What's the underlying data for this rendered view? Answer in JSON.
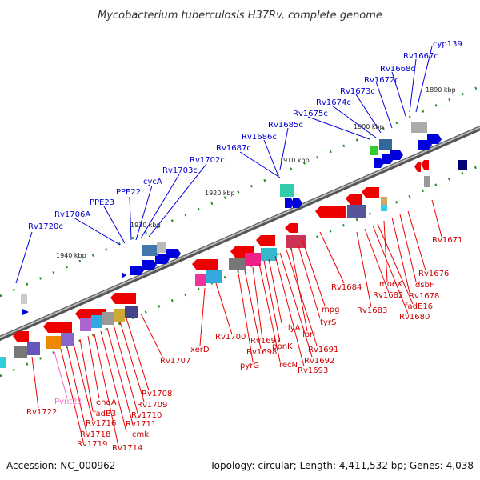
{
  "header": {
    "title": "Mycobacterium tuberculosis H37Rv, complete genome"
  },
  "footer": {
    "accession": "Accession: NC_000962",
    "summary": "Topology: circular; Length: 4,411,532 bp; Genes: 4,038"
  },
  "colors": {
    "backbone": "#7a7a7a",
    "forward_gene": "#0000dd",
    "reverse_gene": "#ee0000",
    "forward_label": "#0000cc",
    "reverse_label": "#cc0000",
    "rna_label": "#ff66cc",
    "tick": "#228822"
  },
  "scale": {
    "ticks": [
      "1890 kbp",
      "1900 kbp",
      "1910 kbp",
      "1920 kbp",
      "1930 kbp",
      "1940 kbp"
    ]
  },
  "forward_genes": [
    "cyp139",
    "Rv1667c",
    "Rv1668c",
    "Rv1672c",
    "Rv1673c",
    "Rv1674c",
    "Rv1675c",
    "Rv1685c",
    "Rv1686c",
    "Rv1687c",
    "Rv1702c",
    "Rv1703c",
    "cycA",
    "PPE22",
    "PPE23",
    "Rv1706A",
    "Rv1720c"
  ],
  "reverse_genes": [
    "Rv1671",
    "Rv1676",
    "dsbF",
    "Rv1678",
    "moeX",
    "fadE16",
    "Rv1680",
    "Rv1682",
    "Rv1683",
    "Rv1684",
    "mpg",
    "tyrS",
    "lprJ",
    "Rv1691",
    "Rv1692",
    "Rv1693",
    "tlyA",
    "ppnK",
    "recN",
    "Rv1697",
    "Rv1698",
    "pyrG",
    "Rv1700",
    "xerD",
    "Rv1707",
    "Rv1708",
    "Rv1709",
    "Rv1710",
    "Rv1711",
    "cmk",
    "Rv1714",
    "engA",
    "fadB3",
    "Rv1716",
    "Rv1718",
    "Rv1719",
    "Rv1722"
  ],
  "rna_genes": [
    "Pvnt21"
  ]
}
